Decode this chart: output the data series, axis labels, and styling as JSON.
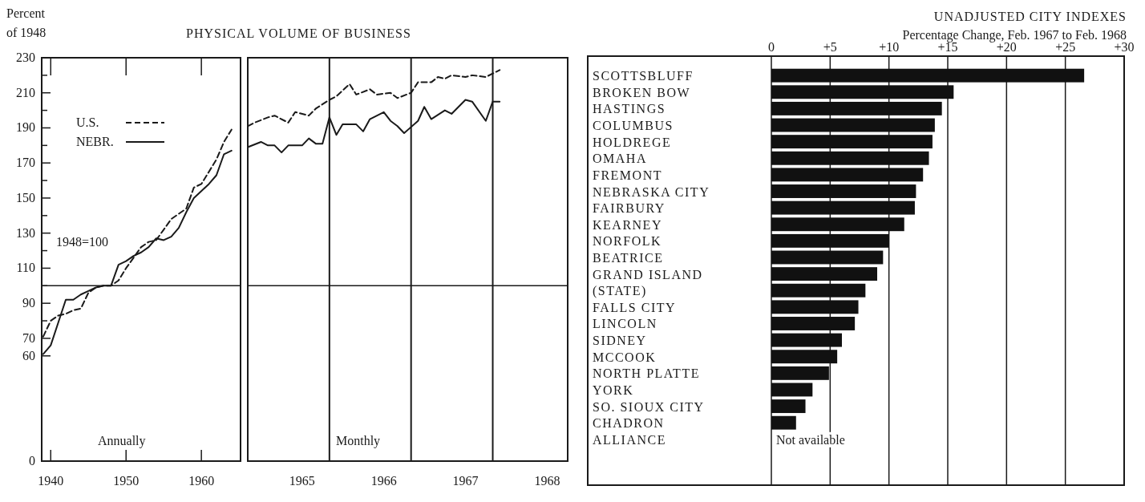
{
  "chart_data": [
    {
      "type": "line",
      "title": "PHYSICAL VOLUME OF BUSINESS",
      "ylabel": "Percent of 1948",
      "x": [
        1939,
        1940,
        1941,
        1942,
        1943,
        1944,
        1945,
        1946,
        1947,
        1948,
        1949,
        1950,
        1951,
        1952,
        1953,
        1954,
        1955,
        1956,
        1957,
        1958,
        1959,
        1960,
        1961,
        1962,
        1963,
        1964
      ],
      "series": [
        {
          "name": "U.S.",
          "color": "#1a1a1a",
          "line_style": "dashed",
          "values": [
            71,
            80,
            83,
            84,
            86,
            87,
            96,
            99,
            100,
            100,
            103,
            110,
            116,
            122,
            125,
            126,
            132,
            138,
            141,
            144,
            156,
            158,
            165,
            172,
            182,
            189
          ]
        },
        {
          "name": "NEBR.",
          "color": "#1a1a1a",
          "line_style": "solid",
          "values": [
            61,
            66,
            79,
            92,
            92,
            95,
            97,
            99,
            100,
            100,
            112,
            114,
            117,
            119,
            122,
            127,
            126,
            128,
            133,
            142,
            150,
            154,
            158,
            163,
            175,
            177
          ]
        }
      ],
      "xlim": [
        1938.8,
        1965.2
      ],
      "xticks": [
        1940,
        1950,
        1960
      ],
      "ylim": [
        0,
        230
      ],
      "yticks": [
        0,
        60,
        70,
        {
          "value": 80,
          "label": null
        },
        90,
        {
          "value": 100,
          "label": null
        },
        110,
        {
          "value": 120,
          "label": null
        },
        130,
        {
          "value": 140,
          "label": null
        },
        150,
        {
          "value": 160,
          "label": null
        },
        170,
        {
          "value": 180,
          "label": null
        },
        190,
        {
          "value": 200,
          "label": null
        },
        210,
        {
          "value": 220,
          "label": null
        },
        230
      ],
      "ref_lines": [
        {
          "axis": "y",
          "value": 100
        }
      ],
      "legend": "top left",
      "annotations": [
        "1948=100",
        "Annually"
      ]
    },
    {
      "type": "line",
      "series": [
        {
          "color": "#1a1a1a",
          "line_style": "dashed",
          "x": [
            "1965-01",
            "1965-02",
            "1965-04",
            "1965-05",
            "1965-07",
            "1965-08",
            "1965-10",
            "1965-11",
            "1966-01",
            "1966-02",
            "1966-04",
            "1966-05",
            "1966-07",
            "1966-08",
            "1966-10",
            "1966-11",
            "1967-01",
            "1967-02",
            "1967-04",
            "1967-05",
            "1967-06",
            "1967-07",
            "1967-09",
            "1967-10",
            "1967-12",
            "1968-01",
            "1968-02"
          ],
          "values": [
            191,
            193,
            196,
            197,
            193,
            199,
            197,
            201,
            206,
            208,
            215,
            209,
            212,
            209,
            210,
            207,
            210,
            216,
            216,
            219,
            218,
            220,
            219,
            220,
            219,
            221,
            223
          ]
        },
        {
          "color": "#1a1a1a",
          "line_style": "solid",
          "x": [
            "1965-01",
            "1965-03",
            "1965-04",
            "1965-05",
            "1965-06",
            "1965-07",
            "1965-09",
            "1965-10",
            "1965-11",
            "1965-12",
            "1966-01",
            "1966-02",
            "1966-03",
            "1966-05",
            "1966-06",
            "1966-07",
            "1966-09",
            "1966-10",
            "1966-11",
            "1966-12",
            "1967-02",
            "1967-03",
            "1967-04",
            "1967-06",
            "1967-07",
            "1967-09",
            "1967-10",
            "1967-12",
            "1968-01",
            "1968-02"
          ],
          "values": [
            179,
            182,
            180,
            180,
            176,
            180,
            180,
            184,
            181,
            181,
            196,
            186,
            192,
            192,
            188,
            195,
            199,
            194,
            191,
            187,
            194,
            202,
            195,
            200,
            198,
            206,
            205,
            194,
            205,
            205
          ]
        }
      ],
      "xlim": [
        "1965-01",
        "1968-12"
      ],
      "xticks": [
        {
          "value": "1965-09",
          "label": "1965"
        },
        {
          "value": "1966-09",
          "label": "1966"
        },
        {
          "value": "1967-09",
          "label": "1967"
        },
        {
          "value": "1968-09",
          "label": "1968"
        }
      ],
      "ylim": [
        0,
        230
      ],
      "yticks": [
        0,
        60,
        70,
        90,
        110,
        130,
        150,
        170,
        190,
        210,
        230
      ],
      "tick_labels": "x",
      "ref_lines": [
        {
          "axis": "y",
          "value": 100
        },
        {
          "axis": "x",
          "value": "1966-01"
        },
        {
          "axis": "x",
          "value": "1967-01"
        },
        {
          "axis": "x",
          "value": "1968-01"
        }
      ],
      "annotations": [
        "Monthly"
      ]
    },
    {
      "type": "bar",
      "orientation": "horizontal",
      "title": "UNADJUSTED CITY INDEXES",
      "subtitle": "Percentage Change, Feb. 1967 to Feb. 1968",
      "categories": [
        "SCOTTSBLUFF",
        "BROKEN BOW",
        "HASTINGS",
        "COLUMBUS",
        "HOLDREGE",
        "OMAHA",
        "FREMONT",
        "NEBRASKA CITY",
        "FAIRBURY",
        "KEARNEY",
        "NORFOLK",
        "BEATRICE",
        "GRAND ISLAND",
        "(STATE)",
        "FALLS CITY",
        "LINCOLN",
        "SIDNEY",
        "MCCOOK",
        "NORTH PLATTE",
        "YORK",
        "SO. SIOUX CITY",
        "CHADRON",
        "ALLIANCE"
      ],
      "values": [
        26.6,
        15.5,
        14.5,
        13.9,
        13.7,
        13.4,
        12.9,
        12.3,
        12.2,
        11.3,
        10.0,
        9.5,
        9.0,
        8.0,
        7.4,
        7.1,
        6.0,
        5.6,
        4.9,
        3.5,
        2.9,
        2.1,
        null
      ],
      "color": "#111111",
      "xlim": [
        0,
        30
      ],
      "xticks": [
        0,
        {
          "value": 5,
          "label": "+5"
        },
        {
          "value": 10,
          "label": "+10"
        },
        {
          "value": 15,
          "label": "+15"
        },
        {
          "value": 20,
          "label": "+20"
        },
        {
          "value": 25,
          "label": "+25"
        },
        {
          "value": 30,
          "label": "+30"
        }
      ],
      "grid": "x",
      "annotations": [
        "Not available"
      ]
    }
  ]
}
